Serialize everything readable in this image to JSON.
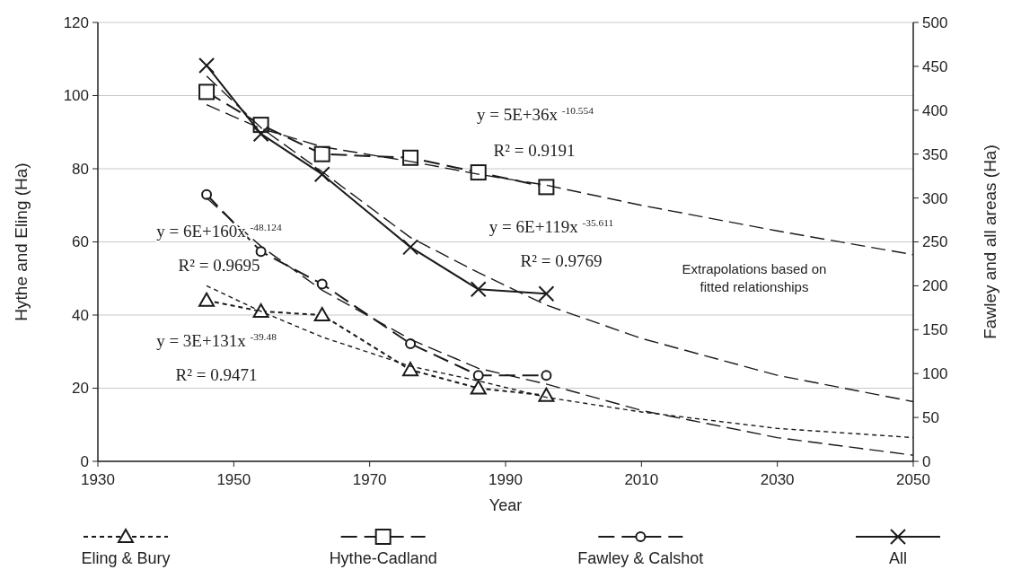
{
  "chart_data": {
    "type": "line",
    "xlabel": "Year",
    "ylabel": "Hythe and Eling (Ha)",
    "y2label": "Fawley and all areas (Ha)",
    "xlim": [
      1930,
      2050
    ],
    "xticks": [
      1930,
      1950,
      1970,
      1990,
      2010,
      2030,
      2050
    ],
    "ylim": [
      0,
      120
    ],
    "yticks": [
      0,
      20,
      40,
      60,
      80,
      100,
      120
    ],
    "y2lim": [
      0,
      500
    ],
    "y2ticks": [
      0,
      50,
      100,
      150,
      200,
      250,
      300,
      350,
      400,
      450,
      500
    ],
    "grid": "y",
    "legend": "bottom",
    "x": [
      1946,
      1954,
      1963,
      1976,
      1986,
      1996
    ],
    "series": [
      {
        "name": "Eling & Bury",
        "color": "#1a1a1a",
        "marker": "triangle",
        "line_style": "dotted",
        "values": [
          44,
          41,
          40,
          25,
          20,
          18
        ]
      },
      {
        "name": "Hythe-Cadland",
        "color": "#1a1a1a",
        "marker": "square",
        "line_style": "dashed",
        "values": [
          101,
          92,
          84,
          83,
          79,
          75
        ]
      },
      {
        "name": "Fawley & Calshot",
        "color": "#1a1a1a",
        "marker": "circle",
        "line_style": "dashed",
        "axis": "y2",
        "values": [
          304,
          239,
          202,
          134,
          98,
          98
        ]
      },
      {
        "name": "All",
        "color": "#1a1a1a",
        "marker": "cross",
        "line_style": "solid",
        "axis": "y2",
        "values": [
          451,
          373,
          327,
          244,
          196,
          191
        ]
      },
      {
        "color": "#1a1a1a",
        "marker": "none",
        "line_style": "dotted",
        "x": [
          1946,
          1954,
          1963,
          1976,
          1986,
          1996,
          2010,
          2030,
          2050
        ],
        "values": [
          48,
          41,
          34,
          26,
          22,
          17.5,
          13.5,
          9,
          6.5
        ]
      },
      {
        "color": "#1a1a1a",
        "marker": "none",
        "line_style": "dashed",
        "x": [
          1946,
          1954,
          1963,
          1976,
          1986,
          1996,
          2010,
          2030,
          2050
        ],
        "values": [
          97.5,
          91,
          86,
          82,
          78.5,
          75.5,
          70,
          63,
          56.5
        ]
      },
      {
        "color": "#1a1a1a",
        "marker": "none",
        "line_style": "dashed",
        "axis": "y2",
        "x": [
          1946,
          1954,
          1963,
          1976,
          1986,
          1996,
          2010,
          2030,
          2050
        ],
        "values": [
          300,
          245,
          195,
          139,
          106,
          88,
          58,
          27,
          7
        ]
      },
      {
        "color": "#1a1a1a",
        "marker": "none",
        "line_style": "dashed",
        "axis": "y2",
        "x": [
          1946,
          1954,
          1963,
          1976,
          1986,
          1996,
          2010,
          2030,
          2050
        ],
        "values": [
          439,
          380,
          330,
          255,
          215,
          178,
          140,
          98,
          68
        ]
      }
    ],
    "annotations": [
      "y = 5E+36x $^{-10.554}$",
      "R² = 0.9191",
      "y = 6E+119x $^{-35.611}$",
      "R² = 0.9769",
      "y = 6E+160x $^{-48.124}$",
      "R² = 0.9695",
      "y = 3E+131x $^{-39.48}$",
      "R² = 0.9471",
      "Extrapolations based on fitted relationships"
    ]
  }
}
